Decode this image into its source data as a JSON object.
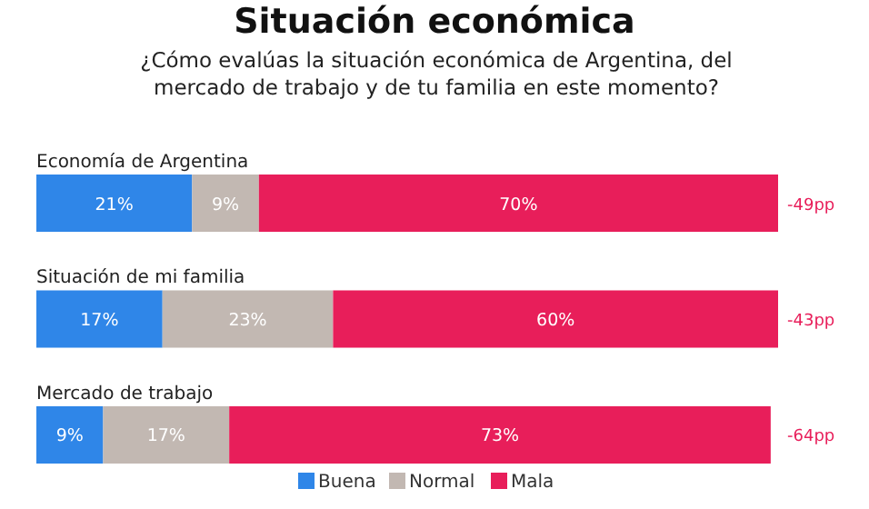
{
  "chart_data": {
    "type": "bar",
    "orientation": "horizontal",
    "stacked": true,
    "title": "Situación económica",
    "subtitle": "¿Cómo evalúas la situación económica de Argentina, del mercado de trabajo y de tu familia en este momento?",
    "categories": [
      "Economía de Argentina",
      "Situación de mi familia",
      "Mercado de trabajo"
    ],
    "series": [
      {
        "name": "Buena",
        "color": "#2f86e8",
        "values": [
          21,
          17,
          9
        ],
        "value_labels": [
          "21%",
          "17%",
          "9%"
        ]
      },
      {
        "name": "Normal",
        "color": "#c2b8b2",
        "values": [
          9,
          23,
          17
        ],
        "value_labels": [
          "9%",
          "23%",
          "17%"
        ]
      },
      {
        "name": "Mala",
        "color": "#e81e5a",
        "values": [
          70,
          60,
          73
        ],
        "value_labels": [
          "70%",
          "60%",
          "73%"
        ]
      }
    ],
    "annotations": [
      "-49pp",
      "-43pp",
      "-64pp"
    ],
    "legend": "bottom"
  }
}
